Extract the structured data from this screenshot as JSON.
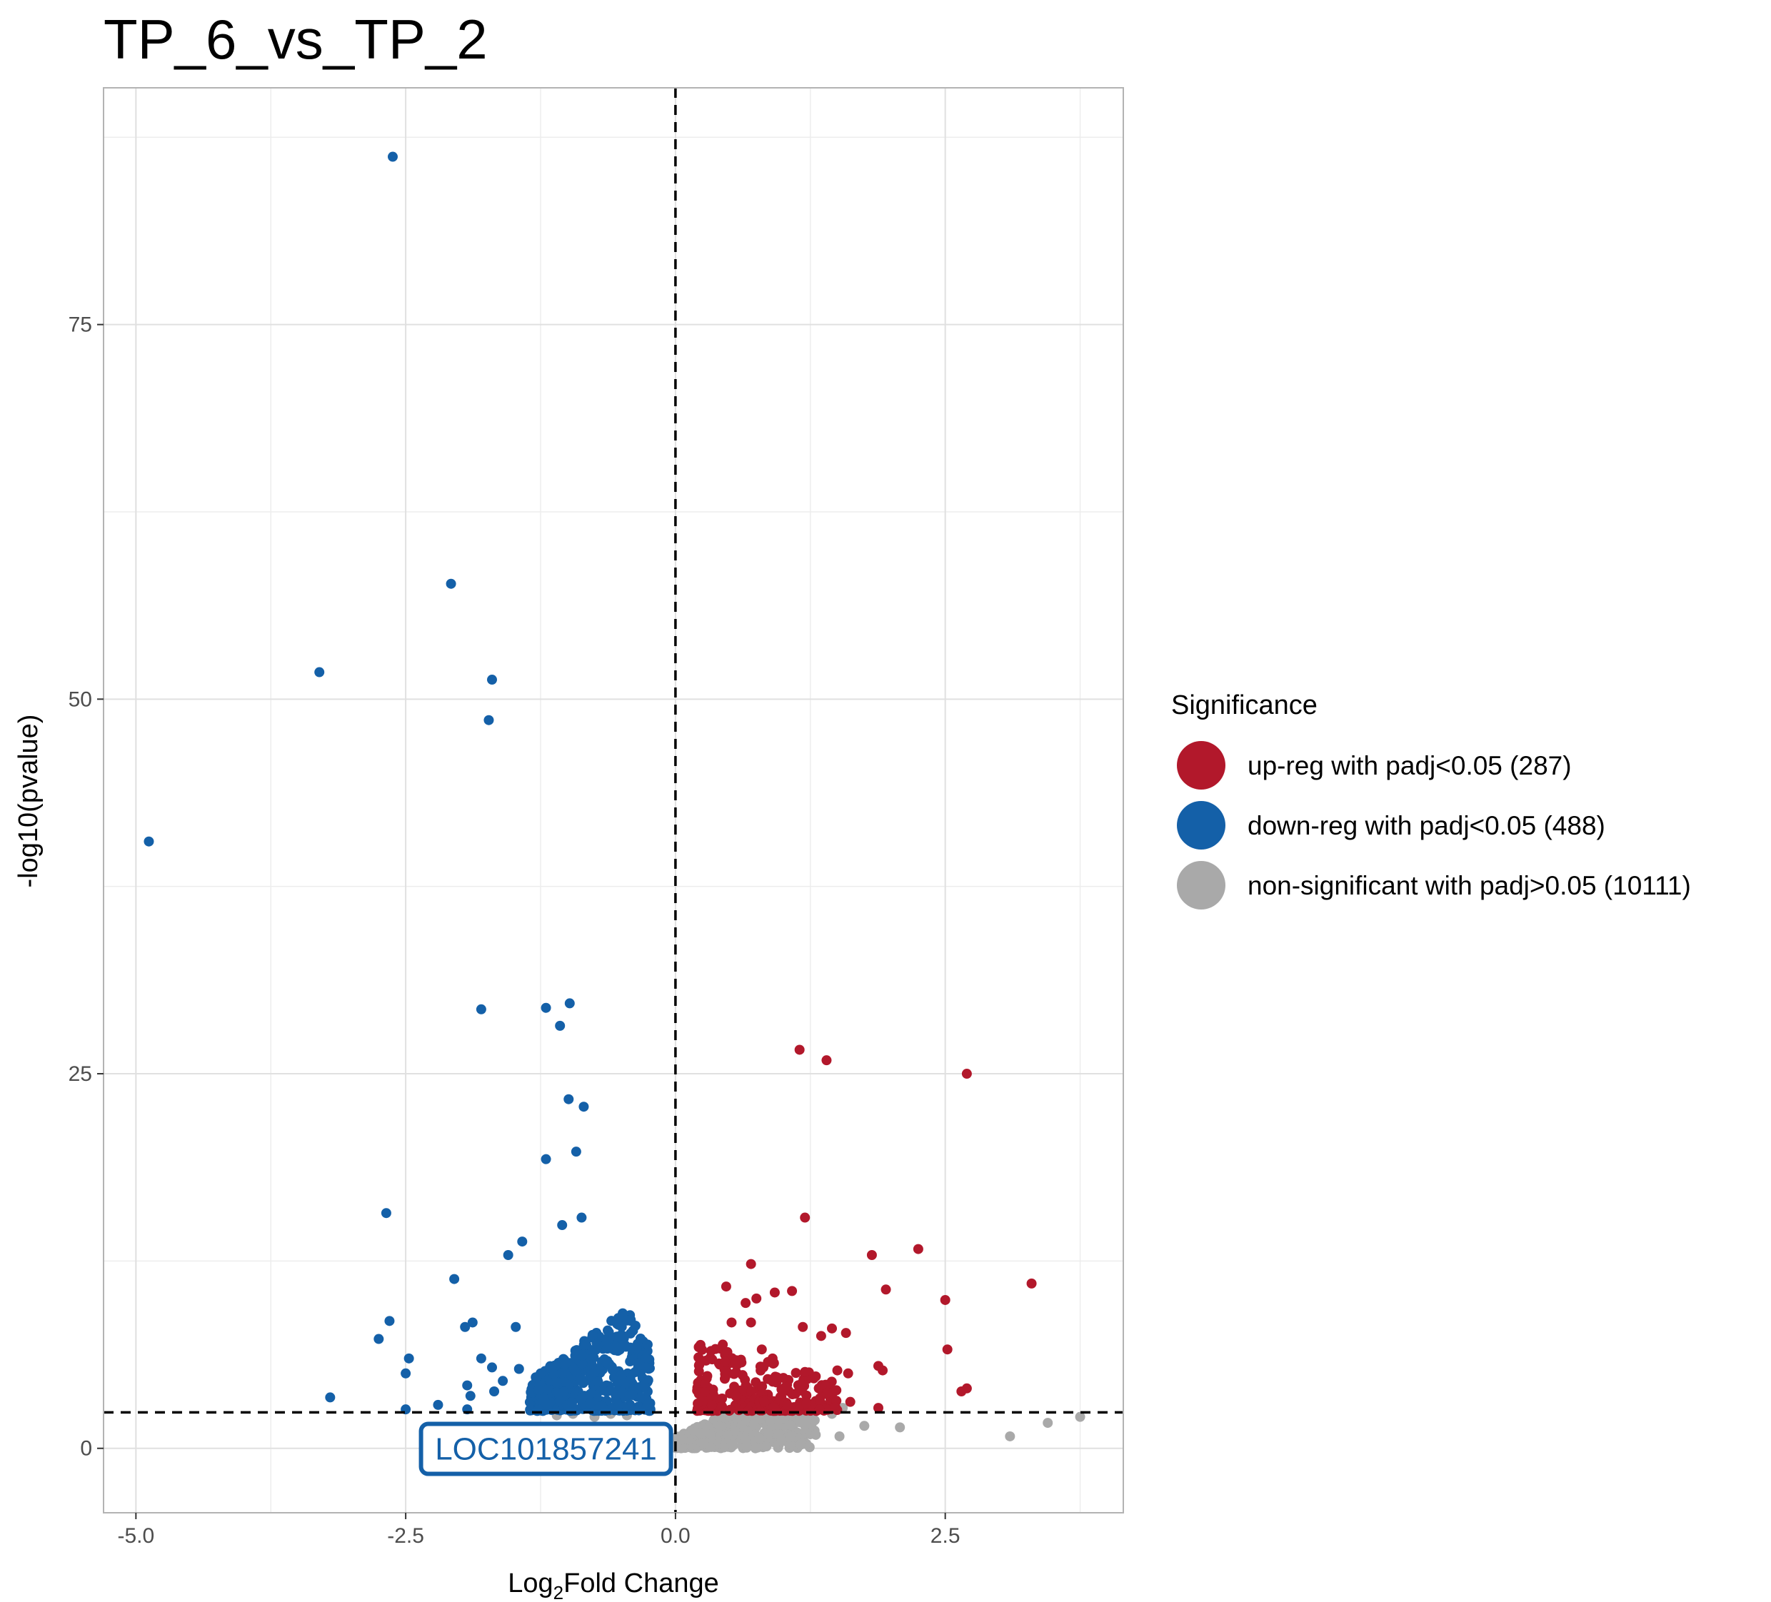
{
  "chart_data": {
    "type": "scatter",
    "title": "TP_6_vs_TP_2",
    "xlabel_prefix": "Log",
    "xlabel_sub": "2",
    "xlabel_suffix": "Fold Change",
    "ylabel": "-log10(pvalue)",
    "xlim": [
      -5.3,
      4.15
    ],
    "ylim": [
      -4.3,
      90.8
    ],
    "x_ticks": [
      -5.0,
      -2.5,
      0.0,
      2.5
    ],
    "x_tick_labels": [
      "-5.0",
      "-2.5",
      "0.0",
      "2.5"
    ],
    "y_ticks": [
      0,
      25,
      50,
      75
    ],
    "y_tick_labels": [
      "0",
      "25",
      "50",
      "75"
    ],
    "x_minor_ticks": [
      -3.75,
      -1.25,
      1.25,
      3.75
    ],
    "y_minor_ticks": [
      12.5,
      37.5,
      62.5,
      87.5
    ],
    "grid": true,
    "thresholds": {
      "vline_x": 0,
      "hline_y": 2.4
    },
    "legend": {
      "title": "Significance",
      "placement": "right",
      "entries": [
        {
          "label": "up-reg with padj<0.05 (287)",
          "color": "#B2182B"
        },
        {
          "label": "down-reg with padj<0.05 (488)",
          "color": "#1460A8"
        },
        {
          "label": "non-significant with padj>0.05 (10111)",
          "color": "#A9A9A9"
        }
      ]
    },
    "annotation": {
      "label": "LOC101857241",
      "x": -1.2,
      "y": 0.2,
      "color": "#1460A8"
    },
    "series": [
      {
        "name": "up-reg with padj<0.05 (287)",
        "color": "#B2182B",
        "points": [
          [
            1.15,
            26.6
          ],
          [
            1.4,
            25.9
          ],
          [
            2.7,
            25.0
          ],
          [
            1.2,
            15.4
          ],
          [
            2.25,
            13.3
          ],
          [
            1.82,
            12.9
          ],
          [
            3.3,
            11.0
          ],
          [
            0.7,
            12.3
          ],
          [
            1.95,
            10.6
          ],
          [
            0.47,
            10.8
          ],
          [
            0.92,
            10.4
          ],
          [
            2.5,
            9.9
          ],
          [
            1.08,
            10.5
          ],
          [
            0.75,
            10.0
          ],
          [
            0.65,
            9.7
          ],
          [
            0.52,
            8.4
          ],
          [
            0.7,
            8.4
          ],
          [
            1.18,
            8.1
          ],
          [
            1.45,
            8.0
          ],
          [
            1.58,
            7.7
          ],
          [
            1.35,
            7.5
          ],
          [
            2.52,
            6.6
          ],
          [
            0.33,
            6.5
          ],
          [
            0.8,
            6.6
          ],
          [
            0.9,
            6.0
          ],
          [
            1.88,
            5.5
          ],
          [
            1.92,
            5.2
          ],
          [
            1.5,
            5.2
          ],
          [
            1.6,
            5.0
          ],
          [
            1.2,
            5.1
          ],
          [
            1.3,
            4.8
          ],
          [
            1.0,
            4.7
          ],
          [
            2.7,
            4.0
          ],
          [
            2.65,
            3.8
          ],
          [
            1.62,
            3.1
          ],
          [
            1.88,
            2.7
          ]
        ],
        "cloud": {
          "n": 260,
          "x_range": [
            0.2,
            1.5
          ],
          "y_range": [
            2.5,
            7.5
          ]
        }
      },
      {
        "name": "down-reg with padj<0.05 (488)",
        "color": "#1460A8",
        "points": [
          [
            -2.62,
            86.2
          ],
          [
            -2.08,
            57.7
          ],
          [
            -3.3,
            51.8
          ],
          [
            -1.7,
            51.3
          ],
          [
            -1.73,
            48.6
          ],
          [
            -4.88,
            40.5
          ],
          [
            -1.8,
            29.3
          ],
          [
            -0.98,
            29.7
          ],
          [
            -1.2,
            29.4
          ],
          [
            -1.07,
            28.2
          ],
          [
            -0.99,
            23.3
          ],
          [
            -0.85,
            22.8
          ],
          [
            -1.2,
            19.3
          ],
          [
            -0.92,
            19.8
          ],
          [
            -2.68,
            15.7
          ],
          [
            -0.87,
            15.4
          ],
          [
            -1.05,
            14.9
          ],
          [
            -1.42,
            13.8
          ],
          [
            -1.55,
            12.9
          ],
          [
            -2.05,
            11.3
          ],
          [
            -2.65,
            8.5
          ],
          [
            -2.75,
            7.3
          ],
          [
            -1.88,
            8.4
          ],
          [
            -1.95,
            8.1
          ],
          [
            -1.48,
            8.1
          ],
          [
            -2.47,
            6.0
          ],
          [
            -2.5,
            5.0
          ],
          [
            -3.2,
            3.4
          ],
          [
            -2.5,
            2.6
          ],
          [
            -2.2,
            2.9
          ],
          [
            -1.93,
            2.6
          ],
          [
            -1.8,
            6.0
          ],
          [
            -1.7,
            5.4
          ],
          [
            -1.45,
            5.3
          ],
          [
            -1.25,
            5.0
          ],
          [
            -1.6,
            4.5
          ],
          [
            -1.93,
            4.2
          ],
          [
            -1.9,
            3.5
          ],
          [
            -1.68,
            3.8
          ]
        ],
        "cloud": {
          "n": 460,
          "x_range": [
            -1.35,
            -0.22
          ],
          "y_range": [
            2.5,
            10.5
          ]
        }
      },
      {
        "name": "non-significant with padj>0.05 (10111)",
        "color": "#A9A9A9",
        "points": [
          [
            3.75,
            2.1
          ],
          [
            3.45,
            1.7
          ],
          [
            3.1,
            0.8
          ],
          [
            2.08,
            1.4
          ],
          [
            1.75,
            1.5
          ],
          [
            1.45,
            2.3
          ],
          [
            1.52,
            0.8
          ],
          [
            1.3,
            0.9
          ],
          [
            1.55,
            2.7
          ],
          [
            1.2,
            1.9
          ],
          [
            1.0,
            2.0
          ],
          [
            0.88,
            1.8
          ],
          [
            -0.45,
            2.2
          ],
          [
            -0.6,
            2.3
          ],
          [
            -0.75,
            2.1
          ],
          [
            -0.95,
            2.3
          ],
          [
            -1.1,
            2.2
          ]
        ],
        "cloud": {
          "n": 480,
          "x_range": [
            0.0,
            1.3
          ],
          "y_range": [
            0.0,
            2.4
          ]
        }
      }
    ]
  }
}
